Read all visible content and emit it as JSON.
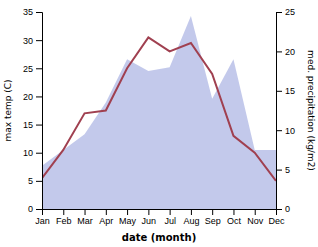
{
  "chart_data": {
    "type": "line",
    "categories": [
      "Jan",
      "Feb",
      "Mar",
      "Apr",
      "May",
      "Jun",
      "Jul",
      "Aug",
      "Sep",
      "Oct",
      "Nov",
      "Dec"
    ],
    "series": [
      {
        "type": "area",
        "axis": "y2",
        "color": "#b8c0e8",
        "values": [
          5.5,
          7.5,
          9.5,
          13.5,
          19.0,
          17.5,
          18.0,
          24.5,
          14.0,
          19.0,
          7.5,
          7.5
        ]
      },
      {
        "type": "line",
        "color": "#a04050",
        "values": [
          5.5,
          10.5,
          17.0,
          17.5,
          25.0,
          30.5,
          28.0,
          29.5,
          24.0,
          13.0,
          10.0,
          5.0
        ]
      }
    ],
    "xlabel": "date (month)",
    "ylabel": "max temp (C)",
    "y2label": "med. precipitation (kg/m2)",
    "ylim": [
      0,
      35
    ],
    "yticks": [
      0,
      5,
      10,
      15,
      20,
      25,
      30,
      35
    ],
    "y2lim": [
      0,
      25
    ],
    "y2ticks": [
      0,
      5,
      10,
      15,
      20,
      25
    ],
    "grid": false
  }
}
